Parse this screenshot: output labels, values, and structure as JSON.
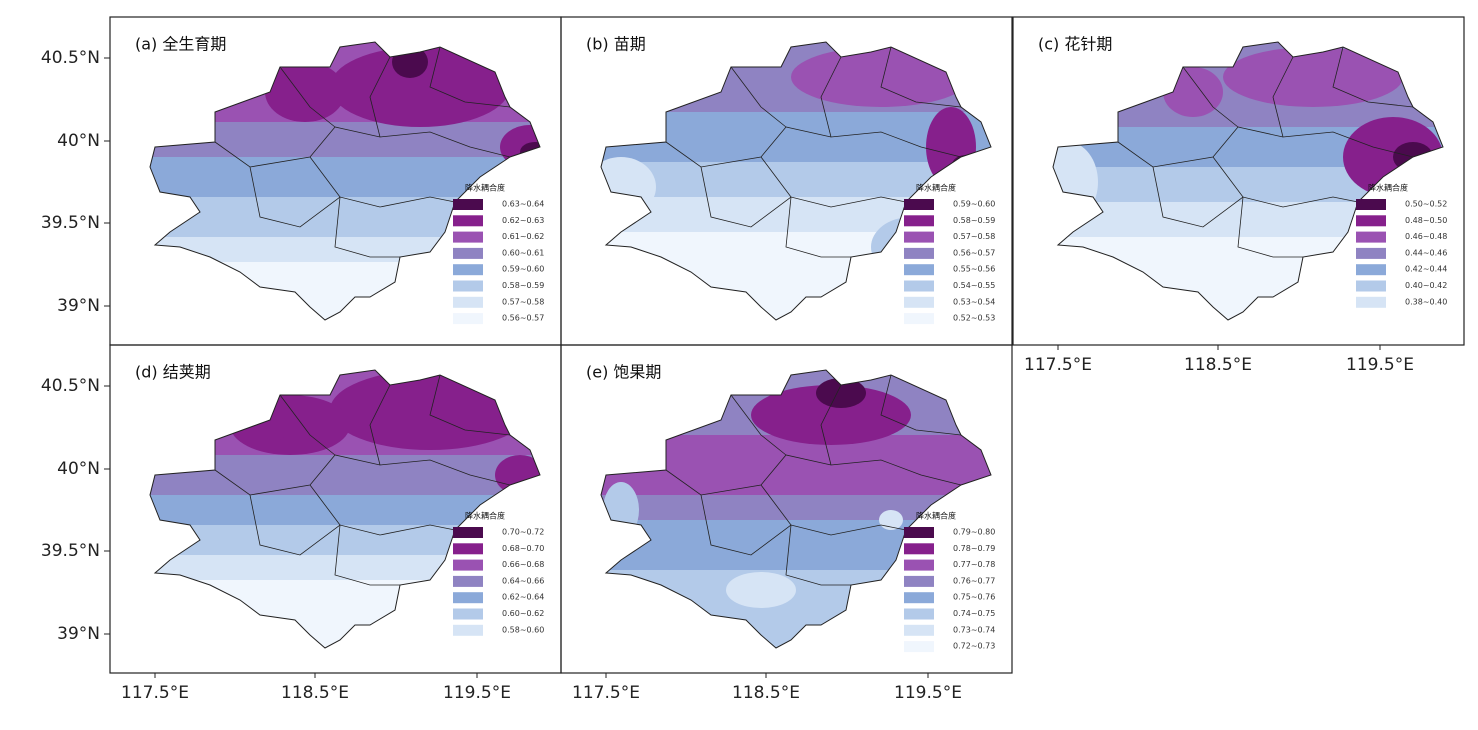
{
  "panels": [
    {
      "label": "(a) 全生育期",
      "legend_title": "降水耦合度",
      "legend": [
        "0.63~0.64",
        "0.62~0.63",
        "0.61~0.62",
        "0.60~0.61",
        "0.59~0.60",
        "0.58~0.59",
        "0.57~0.58",
        "0.56~0.57"
      ]
    },
    {
      "label": "(b) 苗期",
      "legend_title": "降水耦合度",
      "legend": [
        "0.59~0.60",
        "0.58~0.59",
        "0.57~0.58",
        "0.56~0.57",
        "0.55~0.56",
        "0.54~0.55",
        "0.53~0.54",
        "0.52~0.53"
      ]
    },
    {
      "label": "(c) 花针期",
      "legend_title": "降水耦合度",
      "legend": [
        "0.50~0.52",
        "0.48~0.50",
        "0.46~0.48",
        "0.44~0.46",
        "0.42~0.44",
        "0.40~0.42",
        "0.38~0.40"
      ]
    },
    {
      "label": "(d) 结荚期",
      "legend_title": "降水耦合度",
      "legend": [
        "0.70~0.72",
        "0.68~0.70",
        "0.66~0.68",
        "0.64~0.66",
        "0.62~0.64",
        "0.60~0.62",
        "0.58~0.60"
      ]
    },
    {
      "label": "(e) 饱果期",
      "legend_title": "降水耦合度",
      "legend": [
        "0.79~0.80",
        "0.78~0.79",
        "0.77~0.78",
        "0.76~0.77",
        "0.75~0.76",
        "0.74~0.75",
        "0.73~0.74",
        "0.72~0.73"
      ]
    }
  ],
  "legend_colors": [
    "#4b0a4e",
    "#86208c",
    "#9a52b2",
    "#8f83c2",
    "#8ba9d9",
    "#b3cae9",
    "#d6e4f5",
    "#f0f6fd"
  ],
  "y_axis_labels": [
    "40.5°N",
    "40°N",
    "39.5°N",
    "39°N"
  ],
  "x_axis_labels": [
    "117.5°E",
    "118.5°E",
    "119.5°E"
  ]
}
